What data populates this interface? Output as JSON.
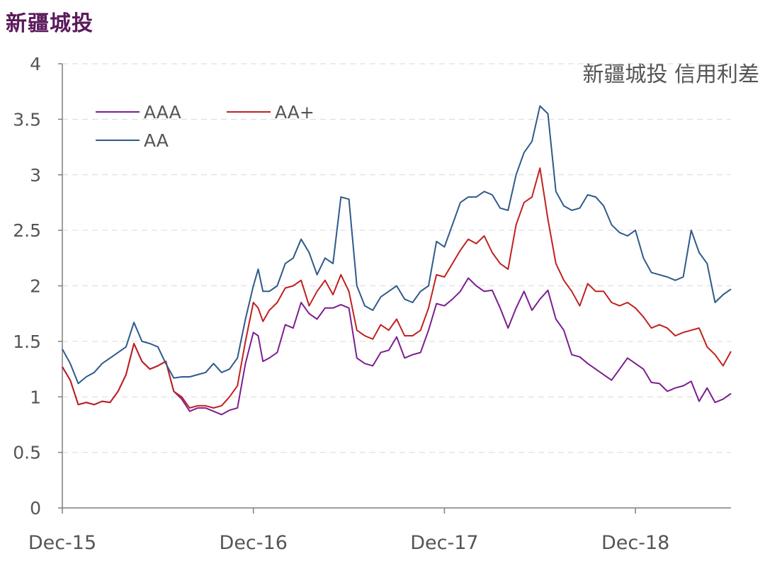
{
  "header": {
    "title": "新疆城投"
  },
  "chart_data": {
    "type": "line",
    "title": "新疆城投 信用利差",
    "xlabel": "",
    "ylabel": "",
    "ylim": [
      0,
      4
    ],
    "yticks": [
      "0",
      "0.5",
      "1",
      "1.5",
      "2",
      "2.5",
      "3",
      "3.5",
      "4"
    ],
    "xticks": [
      "Dec-15",
      "Dec-16",
      "Dec-17",
      "Dec-18"
    ],
    "grid": "horizontal-dashed",
    "legend": "top-left",
    "x_note": "weekly observations from Dec-15 to mid-2019 (approx. 0 = Dec-15, 12 = Dec-16, 24 = Dec-17, 36 = Dec-18 in months)",
    "series": [
      {
        "name": "AAA",
        "color": "#7b1f8f",
        "x": [
          0,
          0.5,
          1,
          1.5,
          2,
          2.5,
          3,
          3.5,
          4,
          4.5,
          5,
          5.5,
          6,
          6.5,
          7,
          7.5,
          8,
          8.5,
          9,
          9.5,
          10,
          10.5,
          11,
          11.5,
          12,
          12.3,
          12.6,
          13,
          13.5,
          14,
          14.5,
          15,
          15.5,
          16,
          16.5,
          17,
          17.5,
          18,
          18.5,
          19,
          19.5,
          20,
          20.5,
          21,
          21.5,
          22,
          22.5,
          23,
          23.5,
          24,
          24.5,
          25,
          25.5,
          26,
          26.5,
          27,
          27.5,
          28,
          28.5,
          29,
          29.5,
          30,
          30.5,
          31,
          31.5,
          32,
          32.5,
          33,
          33.5,
          34,
          34.5,
          35,
          35.5,
          36,
          36.5,
          37,
          37.5,
          38,
          38.5,
          39,
          39.5,
          40,
          40.5,
          41,
          41.5,
          42
        ],
        "values": [
          1.27,
          1.15,
          0.93,
          0.95,
          0.93,
          0.96,
          0.95,
          1.05,
          1.2,
          1.48,
          1.32,
          1.25,
          1.28,
          1.32,
          1.05,
          0.98,
          0.87,
          0.9,
          0.9,
          0.87,
          0.84,
          0.88,
          0.9,
          1.3,
          1.58,
          1.55,
          1.32,
          1.35,
          1.4,
          1.65,
          1.62,
          1.85,
          1.75,
          1.7,
          1.8,
          1.8,
          1.83,
          1.8,
          1.35,
          1.3,
          1.28,
          1.4,
          1.42,
          1.54,
          1.35,
          1.38,
          1.4,
          1.6,
          1.84,
          1.82,
          1.88,
          1.95,
          2.07,
          2.0,
          1.95,
          1.96,
          1.8,
          1.62,
          1.8,
          1.95,
          1.78,
          1.88,
          1.96,
          1.7,
          1.6,
          1.38,
          1.36,
          1.3,
          1.25,
          1.2,
          1.15,
          1.25,
          1.35,
          1.3,
          1.25,
          1.13,
          1.12,
          1.05,
          1.08,
          1.1,
          1.14,
          0.96,
          1.08,
          0.95,
          0.98,
          1.03
        ]
      },
      {
        "name": "AA+",
        "color": "#c0211f",
        "x": [
          0,
          0.5,
          1,
          1.5,
          2,
          2.5,
          3,
          3.5,
          4,
          4.5,
          5,
          5.5,
          6,
          6.5,
          7,
          7.5,
          8,
          8.5,
          9,
          9.5,
          10,
          10.5,
          11,
          11.5,
          12,
          12.3,
          12.6,
          13,
          13.5,
          14,
          14.5,
          15,
          15.5,
          16,
          16.5,
          17,
          17.5,
          18,
          18.5,
          19,
          19.5,
          20,
          20.5,
          21,
          21.5,
          22,
          22.5,
          23,
          23.5,
          24,
          24.5,
          25,
          25.5,
          26,
          26.5,
          27,
          27.5,
          28,
          28.5,
          29,
          29.5,
          30,
          30.5,
          31,
          31.5,
          32,
          32.5,
          33,
          33.5,
          34,
          34.5,
          35,
          35.5,
          36,
          36.5,
          37,
          37.5,
          38,
          38.5,
          39,
          39.5,
          40,
          40.5,
          41,
          41.5,
          42
        ],
        "values": [
          1.27,
          1.15,
          0.93,
          0.95,
          0.93,
          0.96,
          0.95,
          1.05,
          1.2,
          1.48,
          1.32,
          1.25,
          1.28,
          1.32,
          1.05,
          1.0,
          0.9,
          0.92,
          0.92,
          0.9,
          0.92,
          1.0,
          1.1,
          1.5,
          1.85,
          1.8,
          1.68,
          1.78,
          1.85,
          1.98,
          2.0,
          2.05,
          1.82,
          1.95,
          2.05,
          1.92,
          2.1,
          1.95,
          1.6,
          1.55,
          1.52,
          1.65,
          1.6,
          1.7,
          1.55,
          1.55,
          1.6,
          1.8,
          2.1,
          2.08,
          2.2,
          2.32,
          2.42,
          2.38,
          2.45,
          2.3,
          2.2,
          2.15,
          2.55,
          2.75,
          2.8,
          3.06,
          2.6,
          2.2,
          2.05,
          1.95,
          1.82,
          2.02,
          1.95,
          1.95,
          1.85,
          1.82,
          1.85,
          1.8,
          1.72,
          1.62,
          1.65,
          1.62,
          1.55,
          1.58,
          1.6,
          1.62,
          1.45,
          1.38,
          1.28,
          1.41
        ]
      },
      {
        "name": "AA",
        "color": "#2f5a8a",
        "x": [
          0,
          0.5,
          1,
          1.5,
          2,
          2.5,
          3,
          3.5,
          4,
          4.5,
          5,
          5.5,
          6,
          6.5,
          7,
          7.5,
          8,
          8.5,
          9,
          9.5,
          10,
          10.5,
          11,
          11.5,
          12,
          12.3,
          12.6,
          13,
          13.5,
          14,
          14.5,
          15,
          15.5,
          16,
          16.5,
          17,
          17.5,
          18,
          18.5,
          19,
          19.5,
          20,
          20.5,
          21,
          21.5,
          22,
          22.5,
          23,
          23.5,
          24,
          24.5,
          25,
          25.5,
          26,
          26.5,
          27,
          27.5,
          28,
          28.5,
          29,
          29.5,
          30,
          30.5,
          31,
          31.5,
          32,
          32.5,
          33,
          33.5,
          34,
          34.5,
          35,
          35.5,
          36,
          36.5,
          37,
          37.5,
          38,
          38.5,
          39,
          39.5,
          40,
          40.5,
          41,
          41.5,
          42
        ],
        "values": [
          1.43,
          1.3,
          1.12,
          1.18,
          1.22,
          1.3,
          1.35,
          1.4,
          1.45,
          1.67,
          1.5,
          1.48,
          1.45,
          1.3,
          1.17,
          1.18,
          1.18,
          1.2,
          1.22,
          1.3,
          1.22,
          1.25,
          1.35,
          1.7,
          2.0,
          2.15,
          1.95,
          1.95,
          2.0,
          2.2,
          2.25,
          2.42,
          2.3,
          2.1,
          2.25,
          2.2,
          2.8,
          2.78,
          2.0,
          1.82,
          1.78,
          1.9,
          1.95,
          2.0,
          1.88,
          1.85,
          1.95,
          2.0,
          2.4,
          2.35,
          2.55,
          2.75,
          2.8,
          2.8,
          2.85,
          2.82,
          2.7,
          2.68,
          3.0,
          3.2,
          3.3,
          3.62,
          3.55,
          2.85,
          2.72,
          2.68,
          2.7,
          2.82,
          2.8,
          2.72,
          2.55,
          2.48,
          2.45,
          2.5,
          2.25,
          2.12,
          2.1,
          2.08,
          2.05,
          2.08,
          2.5,
          2.3,
          2.2,
          1.85,
          1.92,
          1.97
        ]
      }
    ]
  }
}
